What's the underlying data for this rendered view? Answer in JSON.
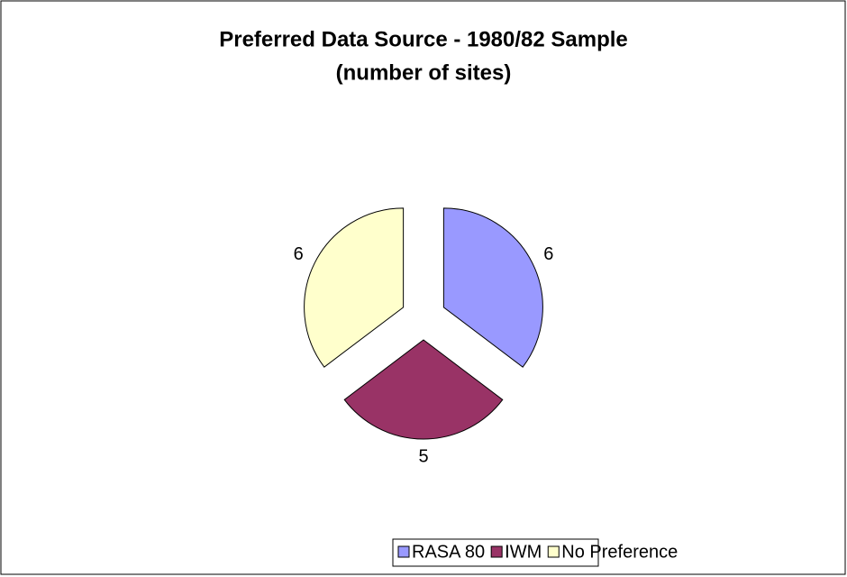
{
  "chart_data": {
    "type": "pie",
    "title": "Preferred Data Source - 1980/82 Sample",
    "subtitle": "(number of sites)",
    "categories": [
      "RASA 80",
      "IWM",
      "No Preference"
    ],
    "values": [
      6,
      5,
      6
    ],
    "colors": [
      "#9999ff",
      "#993366",
      "#ffffcc"
    ],
    "exploded": true,
    "legend": "bottom"
  }
}
